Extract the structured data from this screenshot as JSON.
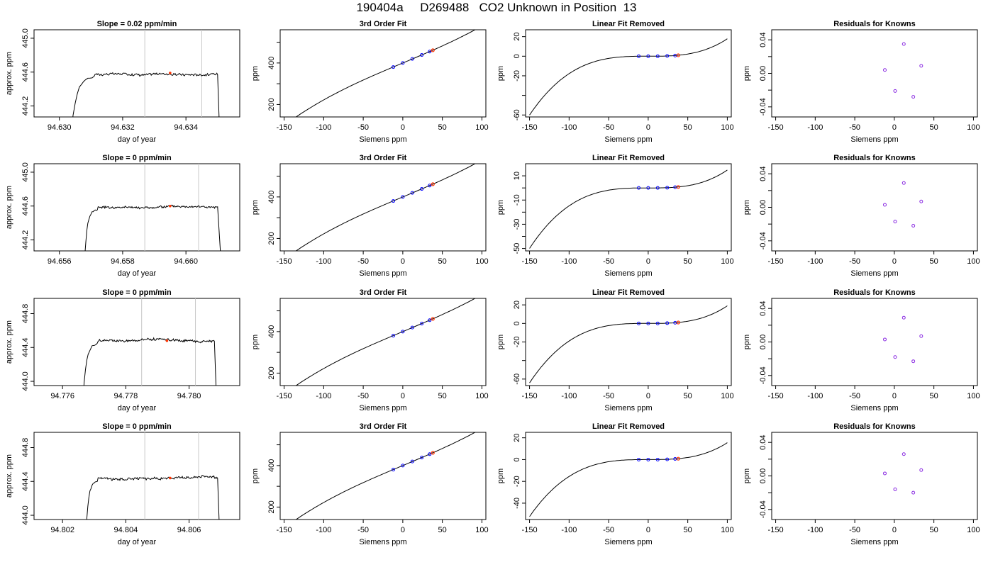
{
  "page_title": "190404a     D269488   CO2 Unknown in Position  13",
  "colors": {
    "axis": "#000000",
    "trace": "#000000",
    "window_line": "#c8c8c8",
    "known_points": "#0000ff",
    "unknown_point": "#ff3300",
    "residual_points": "#8a2be2"
  },
  "chart_data": [
    {
      "type": "line",
      "panel": "trace-1",
      "title": "Slope =  0.02  ppm/min",
      "xlabel": "day of year",
      "ylabel": "approx. ppm",
      "xlim": [
        94.6292,
        94.6357
      ],
      "ylim": [
        444.07,
        445.1
      ],
      "xticks": [
        "94.630",
        "94.632",
        "94.634"
      ],
      "xtick_values": [
        94.63,
        94.632,
        94.634
      ],
      "yticks": [
        "444.2",
        "444.6",
        "445.0"
      ],
      "ytick_values": [
        444.2,
        444.6,
        445.0
      ],
      "window": [
        94.6327,
        94.6345
      ],
      "unknown_point": [
        94.6335,
        444.59
      ],
      "rise": [
        94.6303,
        94.6311
      ],
      "fall": [
        94.635,
        94.6351
      ],
      "plateau": 444.58,
      "start_level": 443.5
    },
    {
      "type": "line",
      "panel": "trace-2",
      "title": "Slope =  0  ppm/min",
      "xlabel": "day of year",
      "ylabel": "approx. ppm",
      "xlim": [
        94.6552,
        94.6617
      ],
      "ylim": [
        444.07,
        445.1
      ],
      "xticks": [
        "94.656",
        "94.658",
        "94.660"
      ],
      "xtick_values": [
        94.656,
        94.658,
        94.66
      ],
      "yticks": [
        "444.2",
        "444.6",
        "445.0"
      ],
      "ytick_values": [
        444.2,
        444.6,
        445.0
      ],
      "window": [
        94.6587,
        94.6604
      ],
      "unknown_point": [
        94.6595,
        444.6
      ],
      "rise": [
        94.6568,
        94.6572
      ],
      "fall": [
        94.661,
        94.6611
      ],
      "plateau": 444.59,
      "start_level": 444.0
    },
    {
      "type": "line",
      "panel": "trace-3",
      "title": "Slope =  0  ppm/min",
      "xlabel": "day of year",
      "ylabel": "approx. ppm",
      "xlim": [
        94.7751,
        94.7816
      ],
      "ylim": [
        443.95,
        444.98
      ],
      "xticks": [
        "94.776",
        "94.778",
        "94.780"
      ],
      "xtick_values": [
        94.776,
        94.778,
        94.78
      ],
      "yticks": [
        "444.0",
        "444.4",
        "444.8"
      ],
      "ytick_values": [
        444.0,
        444.4,
        444.8
      ],
      "window": [
        94.7785,
        94.7802
      ],
      "unknown_point": [
        94.7793,
        444.48
      ],
      "rise": [
        94.7766,
        94.7771
      ],
      "fall": [
        94.7808,
        94.7809
      ],
      "plateau": 444.48,
      "start_level": 443.4
    },
    {
      "type": "line",
      "panel": "trace-4",
      "title": "Slope =  0  ppm/min",
      "xlabel": "day of year",
      "ylabel": "approx. ppm",
      "xlim": [
        94.8011,
        94.8076
      ],
      "ylim": [
        443.95,
        444.98
      ],
      "xticks": [
        "94.802",
        "94.804",
        "94.806"
      ],
      "xtick_values": [
        94.802,
        94.804,
        94.806
      ],
      "yticks": [
        "444.0",
        "444.4",
        "444.8"
      ],
      "ytick_values": [
        444.0,
        444.4,
        444.8
      ],
      "window": [
        94.8046,
        94.8063
      ],
      "unknown_point": [
        94.8054,
        444.44
      ],
      "rise": [
        94.8027,
        94.8031
      ],
      "fall": [
        94.8069,
        94.807
      ],
      "plateau": 444.44,
      "start_level": 443.4
    },
    {
      "type": "line",
      "panel": "fit-1",
      "title": "3rd Order Fit",
      "xlabel": "Siemens ppm",
      "ylabel": "ppm",
      "xlim": [
        -155,
        105
      ],
      "ylim": [
        140,
        560
      ],
      "xticks": [
        "-150",
        "-100",
        "-50",
        "0",
        "50",
        "100"
      ],
      "xtick_values": [
        -150,
        -100,
        -50,
        0,
        50,
        100
      ],
      "yticks": [
        "200",
        "400"
      ],
      "ytick_values": [
        200,
        400
      ],
      "minor_yticks": [
        300,
        500
      ],
      "curve": {
        "x_range": [
          -150,
          100
        ],
        "c0": 400,
        "c1": 1.6,
        "c3": 1.8e-05
      },
      "known_points": [
        [
          -12,
          380.5
        ],
        [
          0,
          400
        ],
        [
          12,
          419.5
        ],
        [
          24,
          438.6
        ],
        [
          34,
          454.8
        ]
      ],
      "unknown_point": [
        38,
        461.3
      ]
    },
    {
      "type": "line",
      "panel": "fit-2",
      "title": "3rd Order Fit",
      "xlabel": "Siemens ppm",
      "ylabel": "ppm",
      "xlim": [
        -155,
        105
      ],
      "ylim": [
        140,
        560
      ],
      "xticks": [
        "-150",
        "-100",
        "-50",
        "0",
        "50",
        "100"
      ],
      "xtick_values": [
        -150,
        -100,
        -50,
        0,
        50,
        100
      ],
      "yticks": [
        "200",
        "400"
      ],
      "ytick_values": [
        200,
        400
      ],
      "minor_yticks": [
        300,
        500
      ],
      "curve": {
        "x_range": [
          -150,
          100
        ],
        "c0": 400,
        "c1": 1.6,
        "c3": 1.8e-05
      },
      "known_points": [
        [
          -12,
          380.5
        ],
        [
          0,
          400
        ],
        [
          12,
          419.5
        ],
        [
          24,
          438.6
        ],
        [
          34,
          454.8
        ]
      ],
      "unknown_point": [
        38,
        461.3
      ]
    },
    {
      "type": "line",
      "panel": "fit-3",
      "title": "3rd Order Fit",
      "xlabel": "Siemens ppm",
      "ylabel": "ppm",
      "xlim": [
        -155,
        105
      ],
      "ylim": [
        140,
        560
      ],
      "xticks": [
        "-150",
        "-100",
        "-50",
        "0",
        "50",
        "100"
      ],
      "xtick_values": [
        -150,
        -100,
        -50,
        0,
        50,
        100
      ],
      "yticks": [
        "200",
        "400"
      ],
      "ytick_values": [
        200,
        400
      ],
      "minor_yticks": [
        300,
        500
      ],
      "curve": {
        "x_range": [
          -150,
          100
        ],
        "c0": 400,
        "c1": 1.6,
        "c3": 1.8e-05
      },
      "known_points": [
        [
          -12,
          380.5
        ],
        [
          0,
          400
        ],
        [
          12,
          419.5
        ],
        [
          24,
          438.6
        ],
        [
          34,
          454.8
        ]
      ],
      "unknown_point": [
        38,
        461.3
      ]
    },
    {
      "type": "line",
      "panel": "fit-4",
      "title": "3rd Order Fit",
      "xlabel": "Siemens ppm",
      "ylabel": "ppm",
      "xlim": [
        -155,
        105
      ],
      "ylim": [
        140,
        560
      ],
      "xticks": [
        "-150",
        "-100",
        "-50",
        "0",
        "50",
        "100"
      ],
      "xtick_values": [
        -150,
        -100,
        -50,
        0,
        50,
        100
      ],
      "yticks": [
        "200",
        "400"
      ],
      "ytick_values": [
        200,
        400
      ],
      "minor_yticks": [
        300,
        500
      ],
      "curve": {
        "x_range": [
          -150,
          100
        ],
        "c0": 400,
        "c1": 1.6,
        "c3": 1.8e-05
      },
      "known_points": [
        [
          -12,
          380.5
        ],
        [
          0,
          400
        ],
        [
          12,
          419.5
        ],
        [
          24,
          438.6
        ],
        [
          34,
          454.8
        ]
      ],
      "unknown_point": [
        38,
        461.3
      ]
    },
    {
      "type": "line",
      "panel": "linfit-1",
      "title": "Linear Fit Removed",
      "xlabel": "Siemens ppm",
      "ylabel": "ppm",
      "xlim": [
        -155,
        105
      ],
      "ylim": [
        -62,
        27
      ],
      "xticks": [
        "-150",
        "-100",
        "-50",
        "0",
        "50",
        "100"
      ],
      "xtick_values": [
        -150,
        -100,
        -50,
        0,
        50,
        100
      ],
      "yticks": [
        "-60",
        "-20",
        "0",
        "20"
      ],
      "ytick_values": [
        -60,
        -20,
        0,
        20
      ],
      "minor_yticks": [
        -40
      ],
      "curve": {
        "x_range": [
          -150,
          100
        ],
        "c0": 0,
        "c1": 0,
        "c3": 1.78e-05
      },
      "known_points": [
        [
          -12,
          0
        ],
        [
          0,
          0
        ],
        [
          12,
          0
        ],
        [
          24,
          0.3
        ],
        [
          34,
          0.7
        ]
      ],
      "unknown_point": [
        38,
        1.0
      ]
    },
    {
      "type": "line",
      "panel": "linfit-2",
      "title": "Linear Fit Removed",
      "xlabel": "Siemens ppm",
      "ylabel": "ppm",
      "xlim": [
        -155,
        105
      ],
      "ylim": [
        -52,
        20
      ],
      "xticks": [
        "-150",
        "-100",
        "-50",
        "0",
        "50",
        "100"
      ],
      "xtick_values": [
        -150,
        -100,
        -50,
        0,
        50,
        100
      ],
      "yticks": [
        "-50",
        "-30",
        "-10",
        "10"
      ],
      "ytick_values": [
        -50,
        -30,
        -10,
        10
      ],
      "minor_yticks": [
        -40,
        -20,
        0
      ],
      "curve": {
        "x_range": [
          -150,
          100
        ],
        "c0": 0,
        "c1": 0,
        "c3": 1.48e-05
      },
      "known_points": [
        [
          -12,
          0
        ],
        [
          0,
          0
        ],
        [
          12,
          0
        ],
        [
          24,
          0.2
        ],
        [
          34,
          0.6
        ]
      ],
      "unknown_point": [
        38,
        0.8
      ]
    },
    {
      "type": "line",
      "panel": "linfit-3",
      "title": "Linear Fit Removed",
      "xlabel": "Siemens ppm",
      "ylabel": "ppm",
      "xlim": [
        -155,
        105
      ],
      "ylim": [
        -67,
        27
      ],
      "xticks": [
        "-150",
        "-100",
        "-50",
        "0",
        "50",
        "100"
      ],
      "xtick_values": [
        -150,
        -100,
        -50,
        0,
        50,
        100
      ],
      "yticks": [
        "-60",
        "-20",
        "0",
        "20"
      ],
      "ytick_values": [
        -60,
        -20,
        0,
        20
      ],
      "minor_yticks": [
        -40
      ],
      "curve": {
        "x_range": [
          -150,
          100
        ],
        "c0": 0,
        "c1": 0,
        "c3": 1.9e-05
      },
      "known_points": [
        [
          -12,
          0
        ],
        [
          0,
          0
        ],
        [
          12,
          0
        ],
        [
          24,
          0.3
        ],
        [
          34,
          0.7
        ]
      ],
      "unknown_point": [
        38,
        1.0
      ]
    },
    {
      "type": "line",
      "panel": "linfit-4",
      "title": "Linear Fit Removed",
      "xlabel": "Siemens ppm",
      "ylabel": "ppm",
      "xlim": [
        -155,
        105
      ],
      "ylim": [
        -55,
        25
      ],
      "xticks": [
        "-150",
        "-100",
        "-50",
        "0",
        "50",
        "100"
      ],
      "xtick_values": [
        -150,
        -100,
        -50,
        0,
        50,
        100
      ],
      "yticks": [
        "-40",
        "-20",
        "0",
        "20"
      ],
      "ytick_values": [
        -40,
        -20,
        0,
        20
      ],
      "minor_yticks": [],
      "curve": {
        "x_range": [
          -150,
          100
        ],
        "c0": 0,
        "c1": 0,
        "c3": 1.55e-05
      },
      "known_points": [
        [
          -12,
          0
        ],
        [
          0,
          0
        ],
        [
          12,
          0
        ],
        [
          24,
          0.2
        ],
        [
          34,
          0.6
        ]
      ],
      "unknown_point": [
        38,
        0.8
      ]
    },
    {
      "type": "scatter",
      "panel": "resid-1",
      "title": "Residuals for Knowns",
      "xlabel": "Siemens ppm",
      "ylabel": "ppm",
      "xlim": [
        -155,
        105
      ],
      "ylim": [
        -0.052,
        0.052
      ],
      "xticks": [
        "-150",
        "-100",
        "-50",
        "0",
        "50",
        "100"
      ],
      "xtick_values": [
        -150,
        -100,
        -50,
        0,
        50,
        100
      ],
      "yticks": [
        "-0.04",
        "0.00",
        "0.04"
      ],
      "ytick_values": [
        -0.04,
        0,
        0.04
      ],
      "minor_yticks": [
        -0.02,
        0.02
      ],
      "points": [
        [
          -12,
          0.004
        ],
        [
          1,
          -0.021
        ],
        [
          12,
          0.035
        ],
        [
          24,
          -0.028
        ],
        [
          34,
          0.009
        ]
      ]
    },
    {
      "type": "scatter",
      "panel": "resid-2",
      "title": "Residuals for Knowns",
      "xlabel": "Siemens ppm",
      "ylabel": "ppm",
      "xlim": [
        -155,
        105
      ],
      "ylim": [
        -0.052,
        0.052
      ],
      "xticks": [
        "-150",
        "-100",
        "-50",
        "0",
        "50",
        "100"
      ],
      "xtick_values": [
        -150,
        -100,
        -50,
        0,
        50,
        100
      ],
      "yticks": [
        "-0.04",
        "0.00",
        "0.04"
      ],
      "ytick_values": [
        -0.04,
        0,
        0.04
      ],
      "minor_yticks": [
        -0.02,
        0.02
      ],
      "points": [
        [
          -12,
          0.003
        ],
        [
          1,
          -0.017
        ],
        [
          12,
          0.029
        ],
        [
          24,
          -0.022
        ],
        [
          34,
          0.007
        ]
      ]
    },
    {
      "type": "scatter",
      "panel": "resid-3",
      "title": "Residuals for Knowns",
      "xlabel": "Siemens ppm",
      "ylabel": "ppm",
      "xlim": [
        -155,
        105
      ],
      "ylim": [
        -0.052,
        0.052
      ],
      "xticks": [
        "-150",
        "-100",
        "-50",
        "0",
        "50",
        "100"
      ],
      "xtick_values": [
        -150,
        -100,
        -50,
        0,
        50,
        100
      ],
      "yticks": [
        "-0.04",
        "0.00",
        "0.04"
      ],
      "ytick_values": [
        -0.04,
        0,
        0.04
      ],
      "minor_yticks": [
        -0.02,
        0.02
      ],
      "points": [
        [
          -12,
          0.003
        ],
        [
          1,
          -0.018
        ],
        [
          12,
          0.029
        ],
        [
          24,
          -0.023
        ],
        [
          34,
          0.007
        ]
      ]
    },
    {
      "type": "scatter",
      "panel": "resid-4",
      "title": "Residuals for Knowns",
      "xlabel": "Siemens ppm",
      "ylabel": "ppm",
      "xlim": [
        -155,
        105
      ],
      "ylim": [
        -0.052,
        0.052
      ],
      "xticks": [
        "-150",
        "-100",
        "-50",
        "0",
        "50",
        "100"
      ],
      "xtick_values": [
        -150,
        -100,
        -50,
        0,
        50,
        100
      ],
      "yticks": [
        "-0.04",
        "0.00",
        "0.04"
      ],
      "ytick_values": [
        -0.04,
        0,
        0.04
      ],
      "minor_yticks": [
        -0.02,
        0.02
      ],
      "points": [
        [
          -12,
          0.003
        ],
        [
          1,
          -0.016
        ],
        [
          12,
          0.026
        ],
        [
          24,
          -0.02
        ],
        [
          34,
          0.007
        ]
      ]
    }
  ]
}
